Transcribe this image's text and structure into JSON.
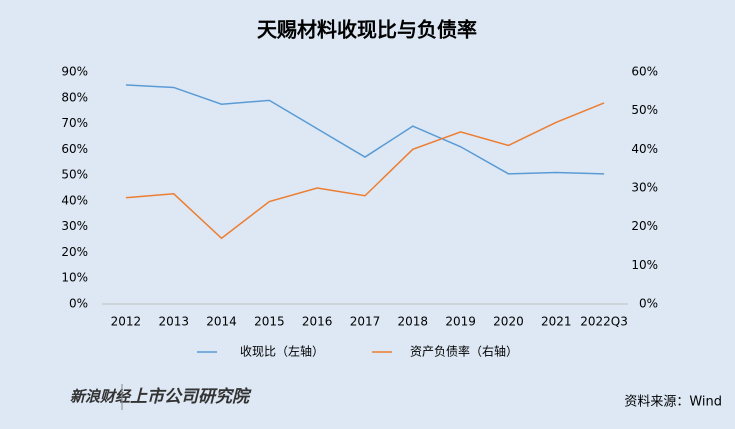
{
  "chart_data": {
    "type": "line",
    "title": "天赐材料收现比与负债率",
    "categories": [
      "2012",
      "2013",
      "2014",
      "2015",
      "2016",
      "2017",
      "2018",
      "2019",
      "2020",
      "2021",
      "2022Q3"
    ],
    "series": [
      {
        "name": "收现比（左轴）",
        "color": "#5b9bd5",
        "values": [
          85,
          84,
          77.5,
          79,
          68,
          57,
          69,
          61,
          50.5,
          51,
          50.5
        ]
      },
      {
        "name": "资产负债率（右轴）",
        "color": "#ed7d31",
        "axis": "y2",
        "values": [
          27.5,
          28.5,
          17,
          26.5,
          30,
          28,
          40,
          44.5,
          41,
          47,
          52
        ]
      }
    ],
    "ylim": [
      0,
      90
    ],
    "yticks": [
      {
        "value": 0,
        "label": "0%"
      },
      {
        "value": 10,
        "label": "10%"
      },
      {
        "value": 20,
        "label": "20%"
      },
      {
        "value": 30,
        "label": "30%"
      },
      {
        "value": 40,
        "label": "40%"
      },
      {
        "value": 50,
        "label": "50%"
      },
      {
        "value": 60,
        "label": "60%"
      },
      {
        "value": 70,
        "label": "70%"
      },
      {
        "value": 80,
        "label": "80%"
      },
      {
        "value": 90,
        "label": "90%"
      }
    ],
    "y2lim": [
      0,
      60
    ],
    "y2ticks": [
      {
        "value": 0,
        "label": "0%"
      },
      {
        "value": 10,
        "label": "10%"
      },
      {
        "value": 20,
        "label": "20%"
      },
      {
        "value": 30,
        "label": "30%"
      },
      {
        "value": 40,
        "label": "40%"
      },
      {
        "value": 50,
        "label": "50%"
      },
      {
        "value": 60,
        "label": "60%"
      }
    ],
    "source": "资料来源：Wind",
    "logo": [
      "新浪财经",
      "上市公司研究院"
    ]
  }
}
